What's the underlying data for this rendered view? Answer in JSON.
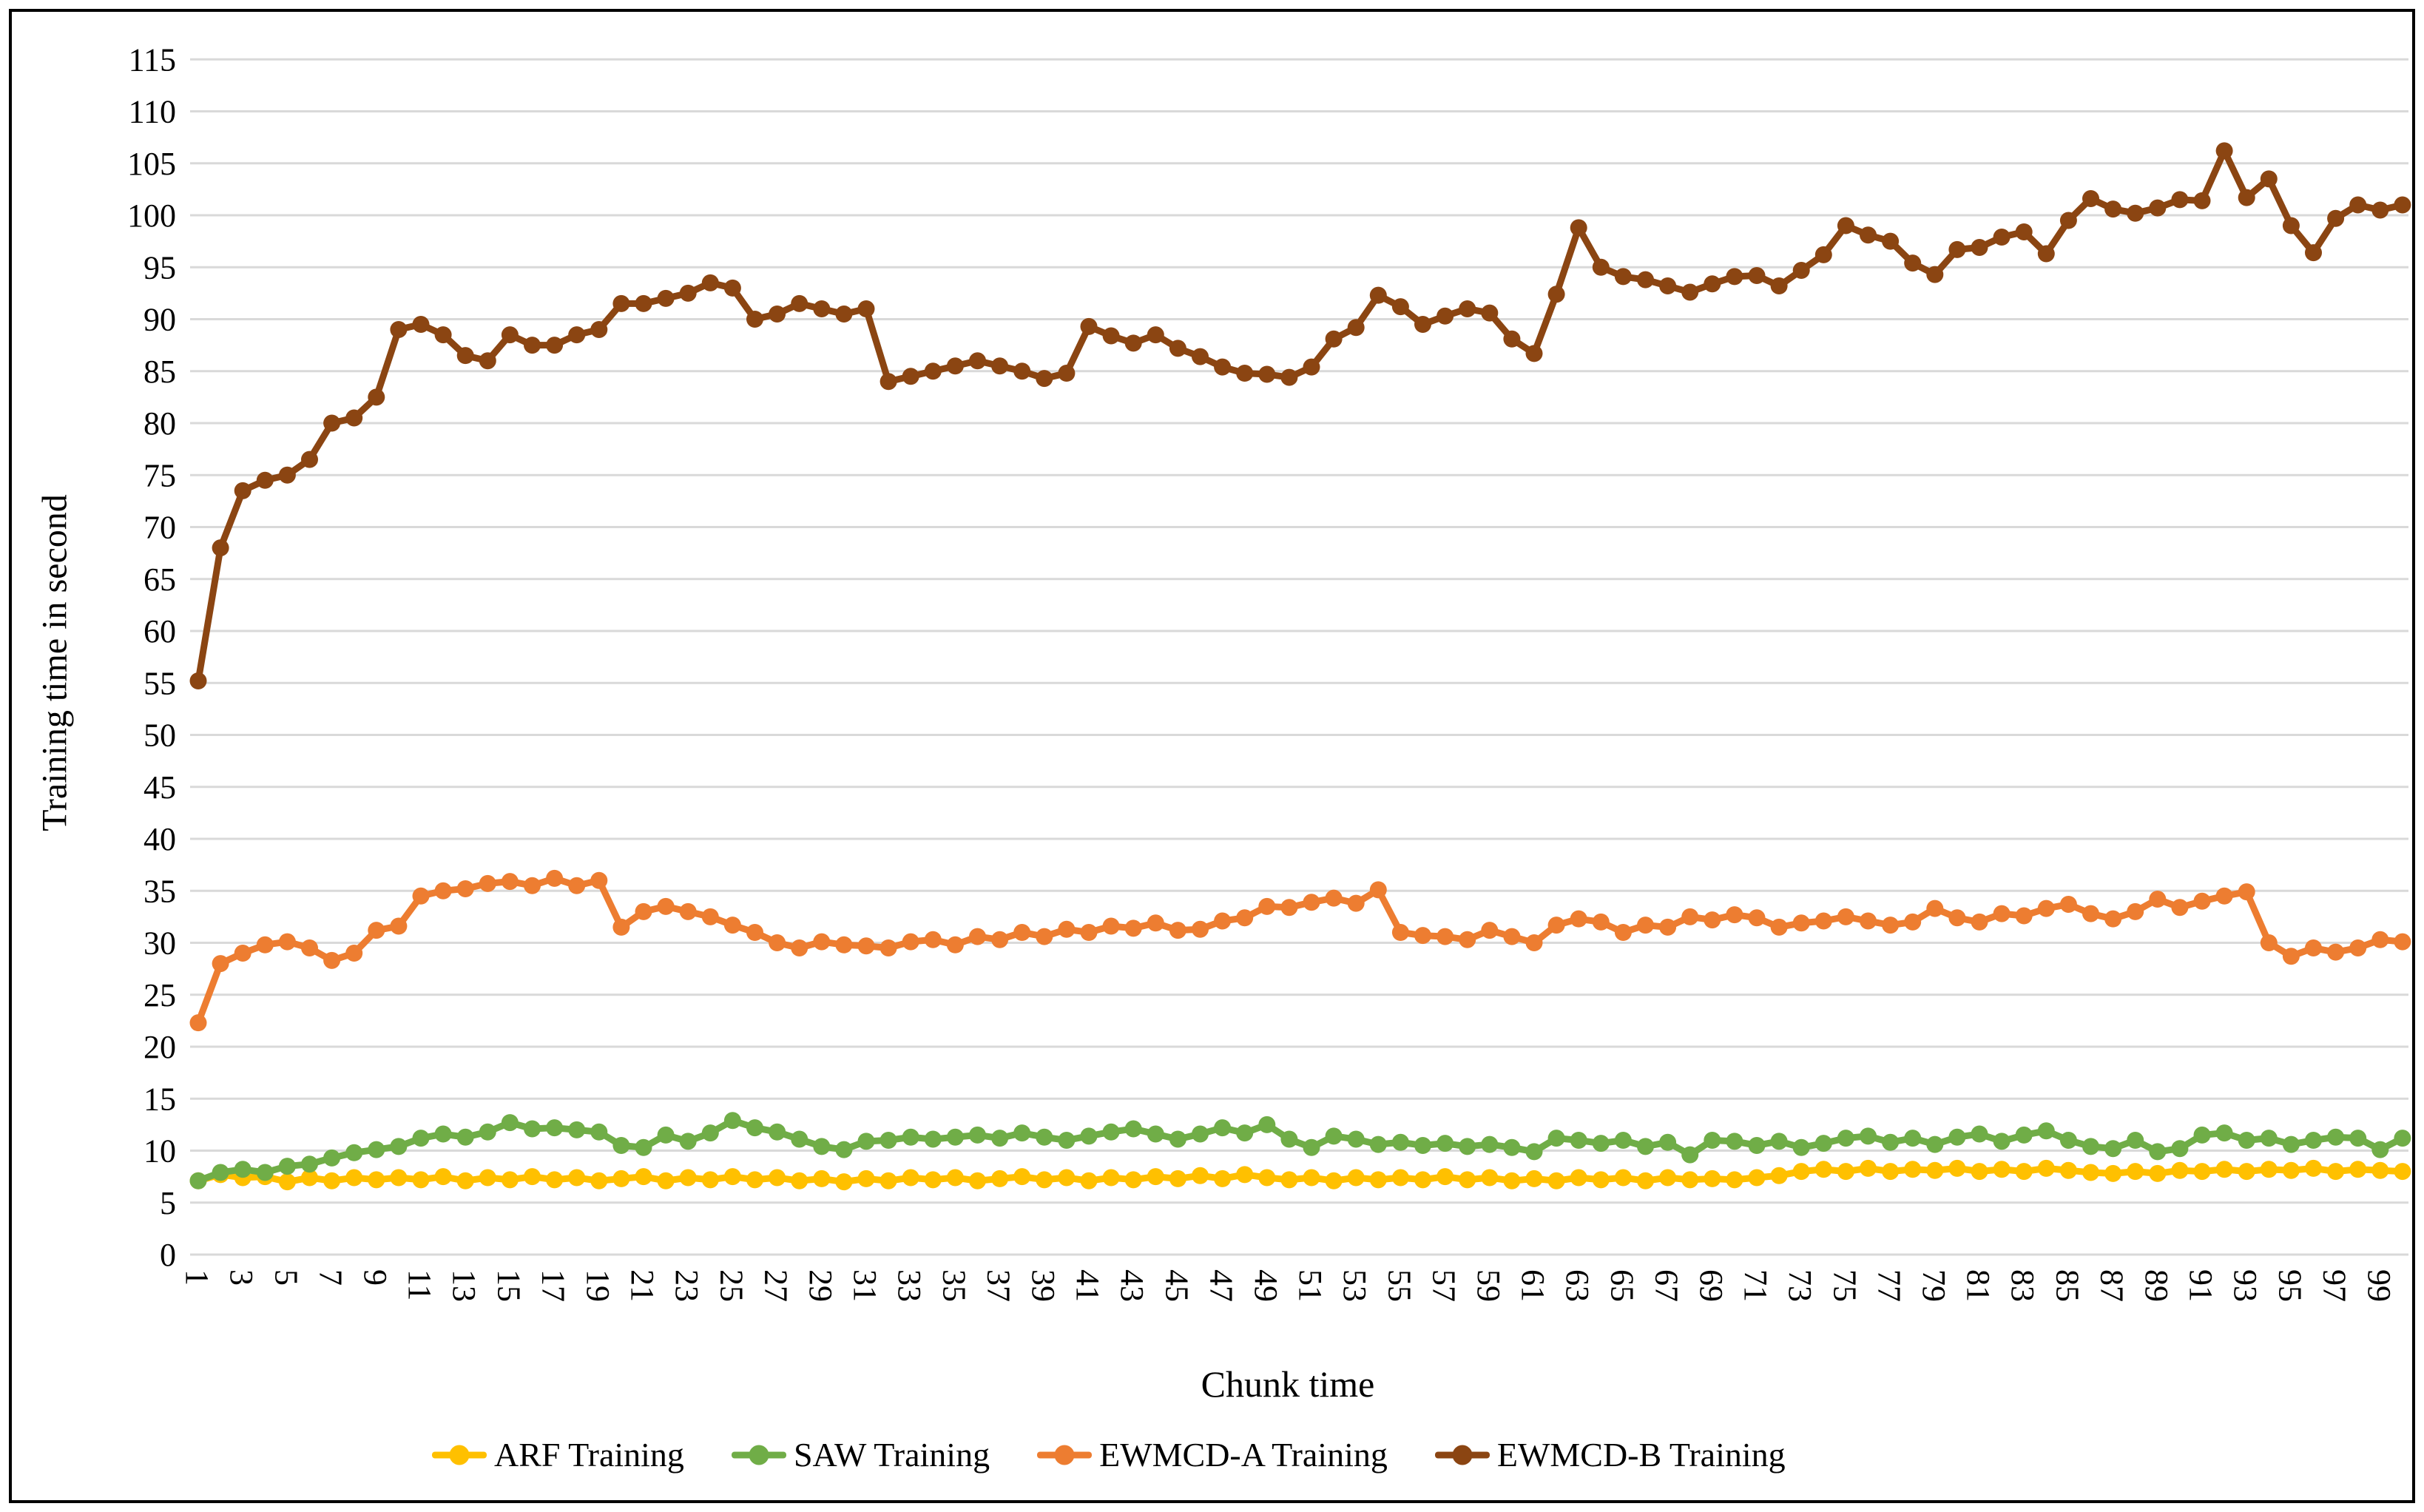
{
  "figure": {
    "background": "#FFFFFF",
    "border_color": "#000000",
    "gridline_color": "#D9D9D9"
  },
  "chart_data": {
    "type": "line",
    "title": "",
    "xlabel": "Chunk time",
    "ylabel": "Training time in second",
    "ylim": [
      0,
      115
    ],
    "y_tick_step": 5,
    "grid": true,
    "legend_position": "bottom",
    "y_ticks": [
      0,
      5,
      10,
      15,
      20,
      25,
      30,
      35,
      40,
      45,
      50,
      55,
      60,
      65,
      70,
      75,
      80,
      85,
      90,
      95,
      100,
      105,
      110,
      115
    ],
    "x": [
      1,
      2,
      3,
      4,
      5,
      6,
      7,
      8,
      9,
      10,
      11,
      12,
      13,
      14,
      15,
      16,
      17,
      18,
      19,
      20,
      21,
      22,
      23,
      24,
      25,
      26,
      27,
      28,
      29,
      30,
      31,
      32,
      33,
      34,
      35,
      36,
      37,
      38,
      39,
      40,
      41,
      42,
      43,
      44,
      45,
      46,
      47,
      48,
      49,
      50,
      51,
      52,
      53,
      54,
      55,
      56,
      57,
      58,
      59,
      60,
      61,
      62,
      63,
      64,
      65,
      66,
      67,
      68,
      69,
      70,
      71,
      72,
      73,
      74,
      75,
      76,
      77,
      78,
      79,
      80,
      81,
      82,
      83,
      84,
      85,
      86,
      87,
      88,
      89,
      90,
      91,
      92,
      93,
      94,
      95,
      96,
      97,
      98,
      99,
      100
    ],
    "x_tick_labels": [
      1,
      3,
      5,
      7,
      9,
      11,
      13,
      15,
      17,
      19,
      21,
      23,
      25,
      27,
      29,
      31,
      33,
      35,
      37,
      39,
      41,
      43,
      45,
      47,
      49,
      51,
      53,
      55,
      57,
      59,
      61,
      63,
      65,
      67,
      69,
      71,
      73,
      75,
      77,
      79,
      81,
      83,
      85,
      87,
      89,
      91,
      93,
      95,
      97,
      99
    ],
    "series": [
      {
        "name": "ARF Training",
        "color": "#FFC000",
        "values": [
          7.1,
          7.7,
          7.4,
          7.5,
          7.0,
          7.4,
          7.1,
          7.4,
          7.2,
          7.4,
          7.2,
          7.5,
          7.1,
          7.4,
          7.2,
          7.5,
          7.2,
          7.4,
          7.1,
          7.3,
          7.5,
          7.1,
          7.4,
          7.2,
          7.5,
          7.2,
          7.4,
          7.1,
          7.3,
          7.0,
          7.3,
          7.1,
          7.4,
          7.2,
          7.4,
          7.1,
          7.3,
          7.5,
          7.2,
          7.4,
          7.1,
          7.4,
          7.2,
          7.5,
          7.3,
          7.6,
          7.3,
          7.7,
          7.4,
          7.2,
          7.4,
          7.1,
          7.4,
          7.2,
          7.4,
          7.2,
          7.5,
          7.2,
          7.4,
          7.1,
          7.3,
          7.1,
          7.4,
          7.2,
          7.4,
          7.1,
          7.4,
          7.2,
          7.3,
          7.2,
          7.4,
          7.6,
          8.0,
          8.2,
          8.0,
          8.3,
          8.0,
          8.2,
          8.1,
          8.3,
          8.0,
          8.2,
          8.0,
          8.3,
          8.1,
          7.9,
          7.8,
          8.0,
          7.8,
          8.1,
          8.0,
          8.2,
          8.0,
          8.2,
          8.1,
          8.3,
          8.0,
          8.2,
          8.1,
          8.0
        ]
      },
      {
        "name": "SAW Training",
        "color": "#70AD47",
        "values": [
          7.1,
          7.9,
          8.2,
          7.9,
          8.5,
          8.7,
          9.3,
          9.8,
          10.1,
          10.4,
          11.2,
          11.6,
          11.3,
          11.8,
          12.7,
          12.1,
          12.2,
          12.0,
          11.8,
          10.5,
          10.3,
          11.5,
          10.9,
          11.7,
          12.9,
          12.2,
          11.8,
          11.1,
          10.4,
          10.1,
          10.9,
          11.0,
          11.3,
          11.1,
          11.3,
          11.5,
          11.2,
          11.7,
          11.3,
          11.0,
          11.4,
          11.8,
          12.1,
          11.6,
          11.1,
          11.6,
          12.2,
          11.7,
          12.5,
          11.1,
          10.3,
          11.4,
          11.1,
          10.6,
          10.8,
          10.5,
          10.7,
          10.4,
          10.6,
          10.3,
          9.9,
          11.2,
          11.0,
          10.7,
          11.0,
          10.4,
          10.8,
          9.6,
          11.0,
          10.9,
          10.5,
          10.9,
          10.3,
          10.7,
          11.2,
          11.4,
          10.8,
          11.2,
          10.6,
          11.3,
          11.6,
          10.9,
          11.5,
          11.9,
          11.0,
          10.4,
          10.2,
          11.0,
          9.9,
          10.2,
          11.5,
          11.7,
          11.0,
          11.2,
          10.6,
          11.0,
          11.3,
          11.2,
          10.1,
          11.2
        ]
      },
      {
        "name": "EWMCD-A Training",
        "color": "#ED7D31",
        "values": [
          22.3,
          28.0,
          29.0,
          29.8,
          30.1,
          29.5,
          28.3,
          29.0,
          31.2,
          31.6,
          34.5,
          35.0,
          35.2,
          35.7,
          35.9,
          35.5,
          36.2,
          35.5,
          36.0,
          31.5,
          33.0,
          33.5,
          33.0,
          32.5,
          31.7,
          31.0,
          30.0,
          29.5,
          30.1,
          29.8,
          29.7,
          29.5,
          30.1,
          30.3,
          29.8,
          30.6,
          30.3,
          31.0,
          30.6,
          31.3,
          31.0,
          31.6,
          31.4,
          31.9,
          31.2,
          31.3,
          32.1,
          32.4,
          33.5,
          33.4,
          33.9,
          34.3,
          33.8,
          35.1,
          31.0,
          30.7,
          30.6,
          30.3,
          31.2,
          30.6,
          30.0,
          31.7,
          32.3,
          32.0,
          31.0,
          31.7,
          31.5,
          32.5,
          32.2,
          32.7,
          32.4,
          31.5,
          31.9,
          32.1,
          32.5,
          32.1,
          31.7,
          32.0,
          33.3,
          32.4,
          32.0,
          32.8,
          32.6,
          33.3,
          33.7,
          32.8,
          32.3,
          33.0,
          34.2,
          33.4,
          34.0,
          34.5,
          34.9,
          30.0,
          28.7,
          29.5,
          29.1,
          29.5,
          30.3,
          30.1
        ]
      },
      {
        "name": "EWMCD-B Training",
        "color": "#8B4512",
        "values": [
          55.2,
          68.0,
          73.5,
          74.5,
          75.0,
          76.5,
          80.0,
          80.5,
          82.5,
          89.0,
          89.5,
          88.5,
          86.5,
          86.0,
          88.5,
          87.5,
          87.5,
          88.5,
          89.0,
          91.5,
          91.5,
          92.0,
          92.5,
          93.5,
          93.0,
          90.0,
          90.5,
          91.5,
          91.0,
          90.5,
          91.0,
          84.0,
          84.5,
          85.0,
          85.5,
          86.0,
          85.5,
          85.0,
          84.3,
          84.8,
          89.3,
          88.4,
          87.7,
          88.5,
          87.2,
          86.4,
          85.4,
          84.8,
          84.7,
          84.4,
          85.4,
          88.1,
          89.2,
          92.3,
          91.2,
          89.5,
          90.3,
          91.0,
          90.6,
          88.1,
          86.7,
          92.4,
          98.8,
          95.0,
          94.1,
          93.8,
          93.2,
          92.6,
          93.4,
          94.1,
          94.2,
          93.2,
          94.7,
          96.2,
          99.0,
          98.1,
          97.5,
          95.4,
          94.3,
          96.7,
          96.9,
          97.9,
          98.4,
          96.3,
          99.5,
          101.6,
          100.6,
          100.2,
          100.7,
          101.5,
          101.4,
          106.2,
          101.7,
          103.5,
          99.0,
          96.4,
          99.7,
          101.0,
          100.5,
          101.0
        ]
      }
    ]
  }
}
